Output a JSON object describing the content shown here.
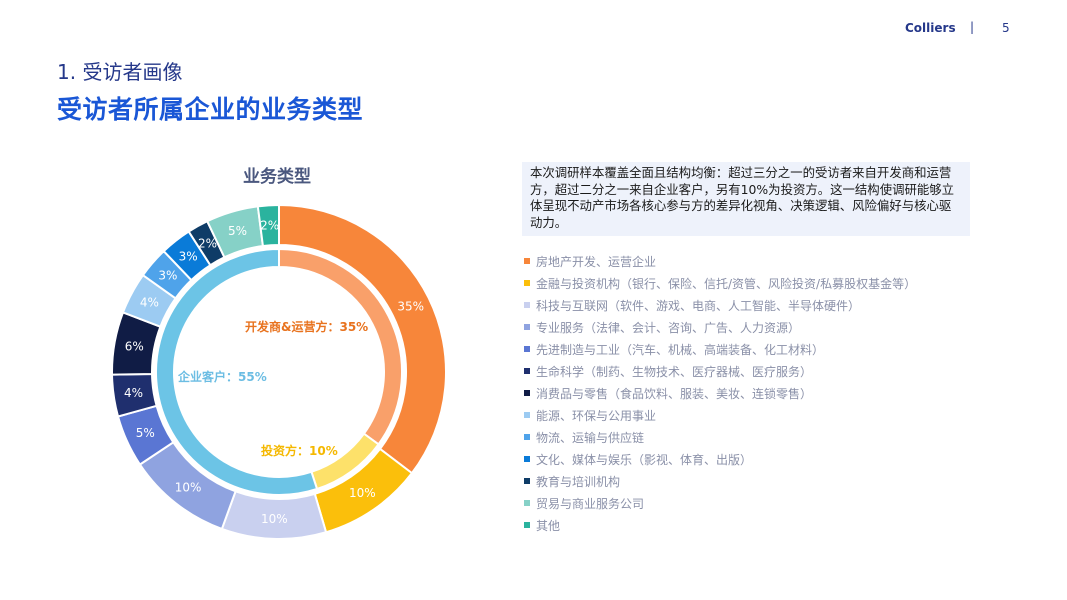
{
  "header": {
    "brand": "Colliers",
    "separator": "|",
    "page_number": "5"
  },
  "section_title": "1. 受访者画像",
  "page_title": "受访者所属企业的业务类型",
  "note": "本次调研样本覆盖全面且结构均衡：超过三分之一的受访者来自开发商和运营方，超过二分之一来自企业客户，另有10%为投资方。这一结构使调研能够立体呈现不动产市场各核心参与方的差异化视角、决策逻辑、风险偏好与核心驱动力。",
  "chart": {
    "title": "业务类型",
    "center_labels": [
      {
        "text": "开发商&运营方：35%",
        "color": "#e8731f"
      },
      {
        "text": "企业客户：55%",
        "color": "#6cbde3"
      },
      {
        "text": "投资方：10%",
        "color": "#f5b800"
      }
    ]
  },
  "legend": [
    {
      "label": "房地产开发、运营企业",
      "color": "#f7863a"
    },
    {
      "label": "金融与投资机构（银行、保险、信托/资管、风险投资/私募股权基金等）",
      "color": "#fbbf0b"
    },
    {
      "label": "科技与互联网（软件、游戏、电商、人工智能、半导体硬件）",
      "color": "#c9d0ef"
    },
    {
      "label": "专业服务（法律、会计、咨询、广告、人力资源）",
      "color": "#8fa3e0"
    },
    {
      "label": "先进制造与工业（汽车、机械、高端装备、化工材料）",
      "color": "#5a76d3"
    },
    {
      "label": "生命科学（制药、生物技术、医疗器械、医疗服务）",
      "color": "#1f2f6e"
    },
    {
      "label": "消费品与零售（食品饮料、服装、美妆、连锁零售）",
      "color": "#101c45"
    },
    {
      "label": "能源、环保与公用事业",
      "color": "#9ccbf2"
    },
    {
      "label": "物流、运输与供应链",
      "color": "#4fa3ea"
    },
    {
      "label": "文化、媒体与娱乐（影视、体育、出版）",
      "color": "#0a7bd8"
    },
    {
      "label": "教育与培训机构",
      "color": "#0e3c67"
    },
    {
      "label": "贸易与商业服务公司",
      "color": "#86d1c7"
    },
    {
      "label": "其他",
      "color": "#2ab39e"
    }
  ],
  "chart_data": {
    "type": "pie",
    "title": "业务类型",
    "outer_ring": {
      "categories": [
        "房地产开发、运营企业",
        "金融与投资机构",
        "科技与互联网",
        "专业服务",
        "先进制造与工业",
        "生命科学",
        "消费品与零售",
        "能源、环保与公用事业",
        "物流、运输与供应链",
        "文化、媒体与娱乐",
        "教育与培训机构",
        "贸易与商业服务公司",
        "其他"
      ],
      "values": [
        35,
        10,
        10,
        10,
        5,
        4,
        6,
        4,
        3,
        3,
        2,
        5,
        2
      ],
      "labels": [
        "35%",
        "10%",
        "10%",
        "10%",
        "5%",
        "4%",
        "6%",
        "4%",
        "3%",
        "3%",
        "2%",
        "5%",
        "2%"
      ],
      "colors": [
        "#f7863a",
        "#fbbf0b",
        "#c9d0ef",
        "#8fa3e0",
        "#5a76d3",
        "#1f2f6e",
        "#101c45",
        "#9ccbf2",
        "#4fa3ea",
        "#0a7bd8",
        "#0e3c67",
        "#86d1c7",
        "#2ab39e"
      ]
    },
    "inner_ring": {
      "categories": [
        "开发商&运营方",
        "投资方",
        "企业客户"
      ],
      "values": [
        35,
        10,
        55
      ],
      "colors": [
        "#f9a06a",
        "#fde16a",
        "#6cc4e6"
      ]
    },
    "legend_position": "right"
  }
}
